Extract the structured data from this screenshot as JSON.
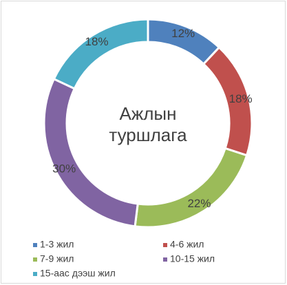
{
  "chart_data": {
    "type": "donut",
    "title": "Ажлын туршлага",
    "categories": [
      "1-3 жил",
      "4-6 жил",
      "7-9 жил",
      "10-15 жил",
      "15-аас дээш жил"
    ],
    "values": [
      12,
      18,
      22,
      30,
      18
    ],
    "value_labels": [
      "12%",
      "18%",
      "22%",
      "30%",
      "18%"
    ],
    "colors": [
      "#4f81bd",
      "#c0504d",
      "#9bbb59",
      "#8064a2",
      "#4bacc6"
    ],
    "legend": "bottom"
  }
}
